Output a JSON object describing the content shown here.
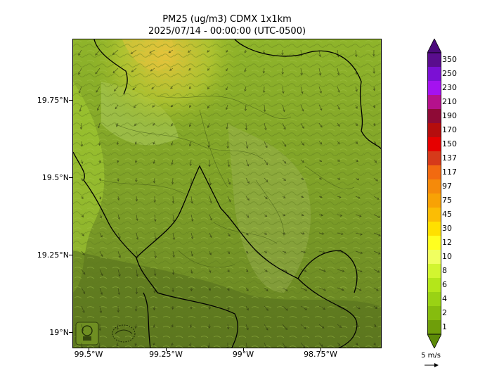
{
  "title_line1": "PM25 (ug/m3) CDMX 1x1km",
  "title_line2": "2025/07/14 - 00:00:00 (UTC-0500)",
  "lat_ticks": [
    "19.75°N",
    "19.5°N",
    "19.25°N",
    "19°N"
  ],
  "lon_ticks": [
    "99.5°W",
    "99.25°W",
    "99°W",
    "98.75°W"
  ],
  "colorbar": {
    "labels": [
      "350",
      "250",
      "230",
      "210",
      "190",
      "170",
      "150",
      "137",
      "117",
      "97",
      "75",
      "45",
      "30",
      "12",
      "10",
      "8",
      "6",
      "4",
      "2",
      "1"
    ],
    "colors": [
      "#5a0d8e",
      "#7b10d4",
      "#a412f0",
      "#b5118c",
      "#8e0a36",
      "#b50d0d",
      "#e60000",
      "#d63a1a",
      "#f26a10",
      "#f58a0a",
      "#f8a205",
      "#fbbd05",
      "#ffe000",
      "#ffff20",
      "#f0ff60",
      "#d2f530",
      "#b4e61a",
      "#9ad214",
      "#86bc0e",
      "#6f9e0a"
    ],
    "top_extension_color": "#4b0a7c",
    "bottom_extension_color": "#5c8a08"
  },
  "wind_scale_label": "5 m/s",
  "logos": [
    "ciudad-logo",
    "agency-logo"
  ]
}
